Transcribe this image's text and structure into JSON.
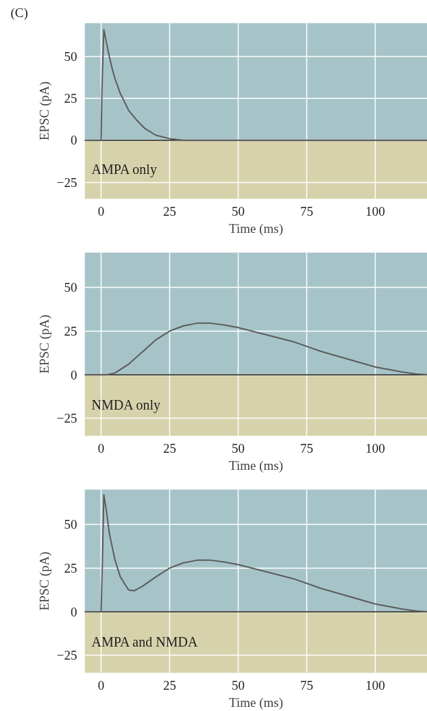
{
  "chart_data": [
    {
      "type": "line",
      "title": "(C)",
      "xlabel": "Time (ms)",
      "ylabel": "EPSC (pA)",
      "xlim": [
        -6,
        119
      ],
      "ylim": [
        -35,
        70
      ],
      "xticks": [
        0,
        25,
        50,
        75,
        100
      ],
      "yticks": [
        -25,
        0,
        25,
        50
      ],
      "grid": true,
      "series": [
        {
          "color": "#5b5b5b",
          "x": [
            -6,
            0,
            0.3,
            1,
            2,
            3,
            4,
            5,
            7,
            10,
            13,
            16,
            20,
            25,
            30,
            119
          ],
          "values": [
            0,
            0,
            30,
            66,
            58,
            50,
            43,
            37,
            28,
            18,
            12,
            7,
            3,
            1,
            0,
            0
          ]
        }
      ],
      "bands": [
        {
          "axis": "y",
          "from": 0,
          "to": 70,
          "color": "#a6c4c8"
        },
        {
          "axis": "y",
          "from": -35,
          "to": 0,
          "color": "#d6d2ab"
        }
      ],
      "ref_lines": [
        {
          "axis": "y",
          "value": 0,
          "color": "#222222"
        }
      ],
      "annotations": [
        "AMPA only"
      ]
    },
    {
      "type": "line",
      "xlabel": "Time (ms)",
      "ylabel": "EPSC (pA)",
      "xlim": [
        -6,
        119
      ],
      "ylim": [
        -35,
        70
      ],
      "xticks": [
        0,
        25,
        50,
        75,
        100
      ],
      "yticks": [
        -25,
        0,
        25,
        50
      ],
      "grid": true,
      "series": [
        {
          "color": "#5b5b5b",
          "x": [
            -6,
            2,
            5,
            10,
            15,
            20,
            25,
            30,
            35,
            40,
            45,
            50,
            60,
            70,
            80,
            90,
            100,
            110,
            115,
            119
          ],
          "values": [
            0,
            0,
            1,
            6,
            13,
            20,
            25,
            28,
            29.5,
            29.5,
            28.5,
            27,
            23,
            19,
            13.5,
            9,
            4.5,
            1.5,
            0.5,
            0
          ]
        }
      ],
      "bands": [
        {
          "axis": "y",
          "from": 0,
          "to": 70,
          "color": "#a6c4c8"
        },
        {
          "axis": "y",
          "from": -35,
          "to": 0,
          "color": "#d6d2ab"
        }
      ],
      "ref_lines": [
        {
          "axis": "y",
          "value": 0,
          "color": "#222222"
        }
      ],
      "annotations": [
        "NMDA only"
      ]
    },
    {
      "type": "line",
      "xlabel": "Time (ms)",
      "ylabel": "EPSC (pA)",
      "xlim": [
        -6,
        119
      ],
      "ylim": [
        -35,
        70
      ],
      "xticks": [
        0,
        25,
        50,
        75,
        100
      ],
      "yticks": [
        -25,
        0,
        25,
        50
      ],
      "grid": true,
      "series": [
        {
          "color": "#5b5b5b",
          "x": [
            -6,
            0,
            0.5,
            1,
            2,
            3,
            5,
            7,
            10,
            12,
            15,
            20,
            25,
            30,
            35,
            40,
            45,
            50,
            60,
            70,
            80,
            90,
            100,
            110,
            115,
            119
          ],
          "values": [
            0,
            0,
            30,
            67,
            57,
            45,
            30,
            20,
            12.5,
            12,
            14.5,
            20,
            25,
            28,
            29.5,
            29.5,
            28.5,
            27,
            23,
            19,
            13.5,
            9,
            4.5,
            1.5,
            0.5,
            0
          ]
        }
      ],
      "bands": [
        {
          "axis": "y",
          "from": 0,
          "to": 70,
          "color": "#a6c4c8"
        },
        {
          "axis": "y",
          "from": -35,
          "to": 0,
          "color": "#d6d2ab"
        }
      ],
      "ref_lines": [
        {
          "axis": "y",
          "value": 0,
          "color": "#222222"
        }
      ],
      "annotations": [
        "AMPA and NMDA"
      ]
    }
  ]
}
